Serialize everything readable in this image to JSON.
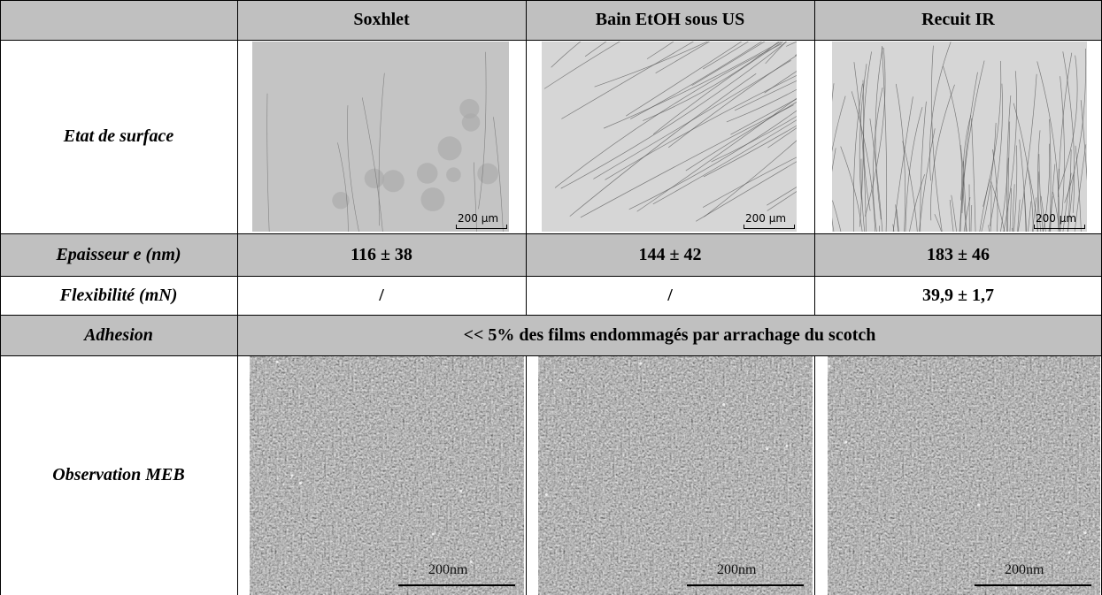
{
  "table": {
    "columns": [
      "Soxhlet",
      "Bain EtOH sous US",
      "Recuit IR"
    ],
    "rows": [
      {
        "label": "Etat de surface",
        "scale_labels": [
          "200 µm",
          "200 µm",
          "200 µm"
        ]
      },
      {
        "label": "Epaisseur e (nm)",
        "cells": [
          "116 ± 38",
          "144 ± 42",
          "183 ± 46"
        ]
      },
      {
        "label": "Flexibilité (mN)",
        "cells": [
          "/",
          "/",
          "39,9 ± 1,7"
        ]
      },
      {
        "label": "Adhesion",
        "merged_text": "<< 5%  des films endommagés par arrachage du scotch"
      },
      {
        "label": "Observation MEB",
        "scale_labels": [
          "200nm",
          "200nm",
          "200nm"
        ]
      }
    ]
  }
}
